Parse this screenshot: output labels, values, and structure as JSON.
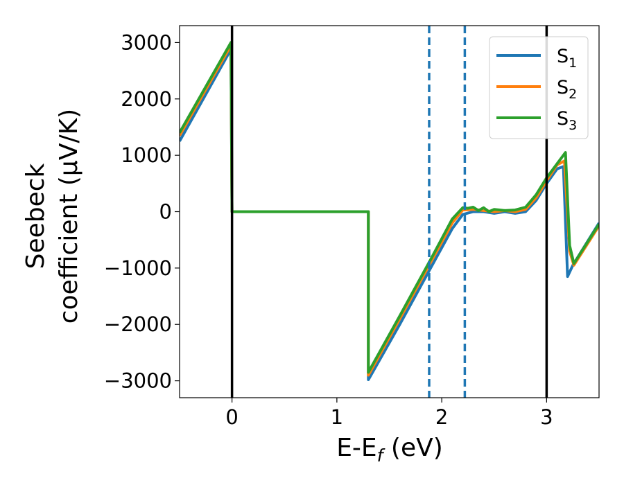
{
  "chart_data": {
    "type": "line",
    "title": "",
    "xlabel": {
      "main": "E-E",
      "sub": "f",
      "tail": " (eV)"
    },
    "ylabel": {
      "line1": "Seebeck",
      "line2": "coefficient  (μV/K)"
    },
    "xlim": [
      -0.5,
      3.5
    ],
    "ylim": [
      -3300,
      3300
    ],
    "xticks": [
      0,
      1,
      2,
      3
    ],
    "xtick_labels": [
      "0",
      "1",
      "2",
      "3"
    ],
    "yticks": [
      -3000,
      -2000,
      -1000,
      0,
      1000,
      2000,
      3000
    ],
    "ytick_labels": [
      "−3000",
      "−2000",
      "−1000",
      "0",
      "1000",
      "2000",
      "3000"
    ],
    "grid": false,
    "legend": {
      "placement": "top-right"
    },
    "vlines": [
      {
        "x": 0,
        "style": "solid",
        "color": "#000000"
      },
      {
        "x": 3,
        "style": "solid",
        "color": "#000000"
      },
      {
        "x": 1.88,
        "style": "dashed",
        "color": "#1f77b4"
      },
      {
        "x": 2.22,
        "style": "dashed",
        "color": "#1f77b4"
      }
    ],
    "series": [
      {
        "name": "S",
        "sub": "1",
        "color": "#1f77b4",
        "x": [
          -0.5,
          -0.01,
          0.0,
          1.3,
          1.3,
          1.6,
          1.9,
          2.1,
          2.2,
          2.3,
          2.4,
          2.5,
          2.6,
          2.7,
          2.8,
          2.9,
          3.0,
          3.1,
          3.16,
          3.2,
          3.25,
          3.5
        ],
        "y": [
          1250,
          2880,
          0,
          0,
          -2980,
          -2000,
          -980,
          -300,
          -50,
          0,
          0,
          -30,
          0,
          -30,
          0,
          200,
          500,
          760,
          800,
          -1150,
          -950,
          -200
        ]
      },
      {
        "name": "S",
        "sub": "2",
        "color": "#ff7f0e",
        "x": [
          -0.5,
          -0.01,
          0.0,
          1.3,
          1.3,
          1.6,
          1.9,
          2.1,
          2.2,
          2.3,
          2.4,
          2.5,
          2.6,
          2.7,
          2.8,
          2.9,
          3.0,
          3.1,
          3.17,
          3.22,
          3.26,
          3.5
        ],
        "y": [
          1350,
          2950,
          0,
          0,
          -2900,
          -1900,
          -880,
          -200,
          30,
          40,
          20,
          0,
          20,
          0,
          40,
          250,
          550,
          830,
          900,
          -700,
          -950,
          -250
        ]
      },
      {
        "name": "S",
        "sub": "3",
        "color": "#2ca02c",
        "x": [
          -0.5,
          -0.01,
          0.0,
          1.3,
          1.3,
          1.6,
          1.9,
          2.1,
          2.2,
          2.25,
          2.3,
          2.35,
          2.4,
          2.45,
          2.5,
          2.6,
          2.7,
          2.8,
          2.9,
          3.0,
          3.1,
          3.18,
          3.22,
          3.26,
          3.5
        ],
        "y": [
          1400,
          3000,
          0,
          0,
          -2850,
          -1850,
          -830,
          -130,
          70,
          60,
          80,
          20,
          70,
          0,
          40,
          20,
          30,
          80,
          300,
          600,
          850,
          1050,
          -600,
          -920,
          -220
        ]
      }
    ]
  }
}
